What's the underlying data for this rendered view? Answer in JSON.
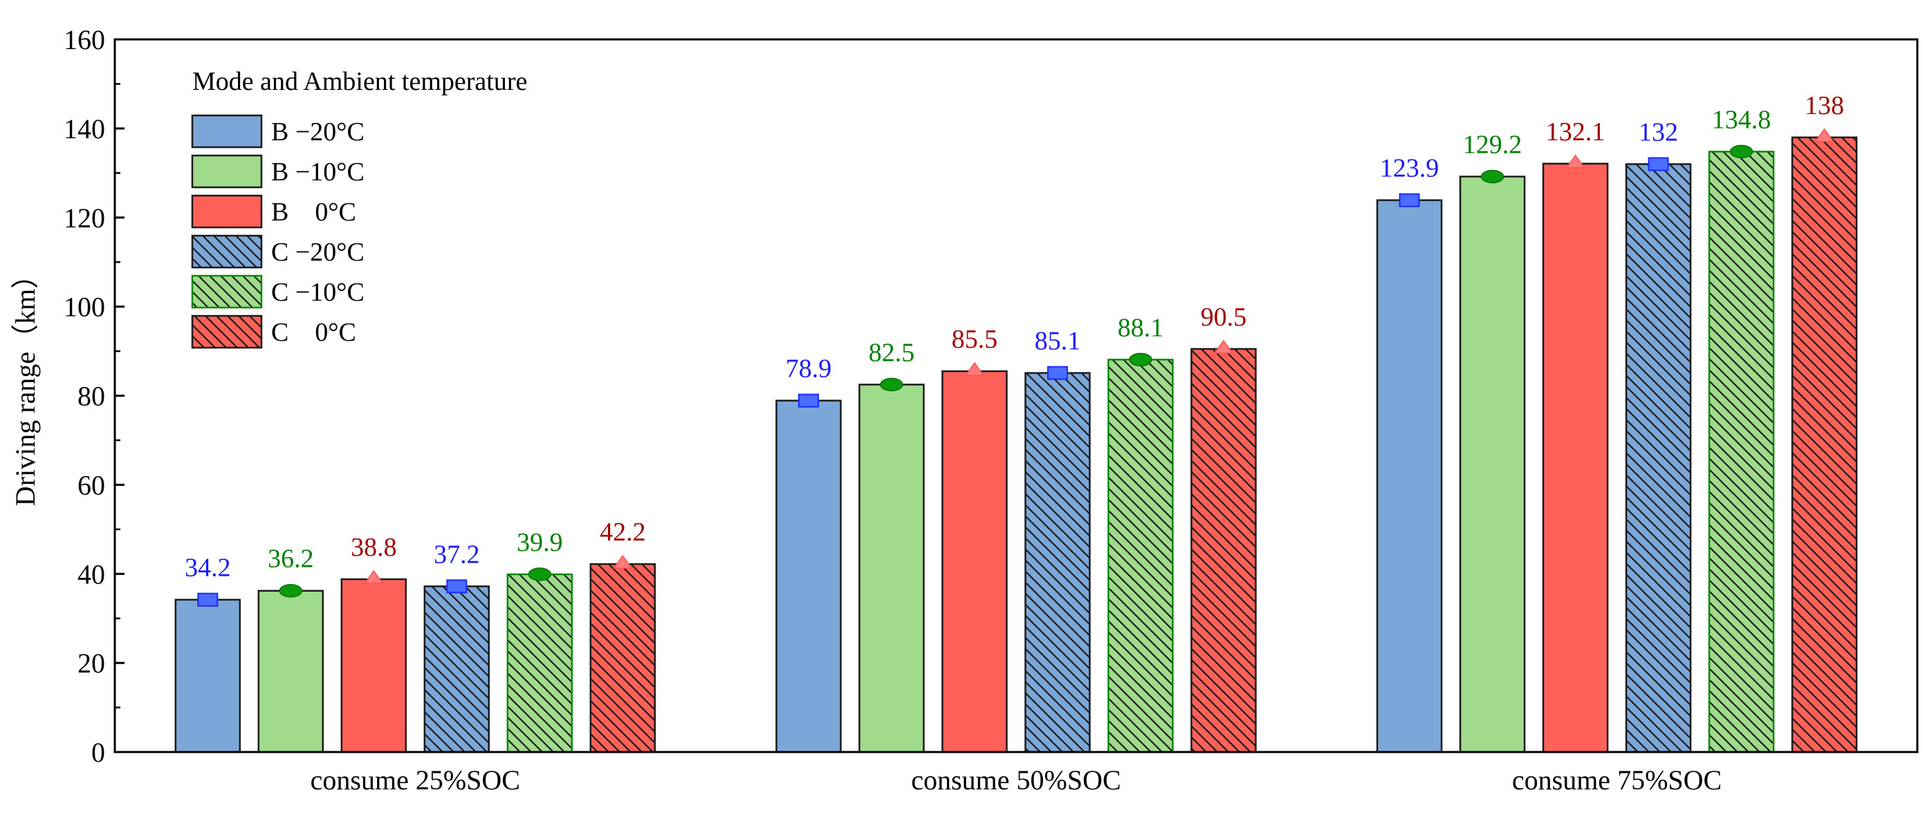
{
  "chart_data": {
    "type": "bar",
    "ylabel": "Driving range（km）",
    "xlabel": "",
    "ylim": [
      0,
      160
    ],
    "yticks": [
      0,
      20,
      40,
      60,
      80,
      100,
      120,
      140,
      160
    ],
    "grid": false,
    "legend_title": "Mode and Ambient temperature",
    "legend_position": "top-left",
    "categories": [
      "consume 25%SOC",
      "consume 50%SOC",
      "consume 75%SOC"
    ],
    "series": [
      {
        "name": "B −20°C",
        "values": [
          34.2,
          78.9,
          123.9
        ],
        "color": "#7ba6d8",
        "hatched": false,
        "marker": "square",
        "label_color": "#1a1aff"
      },
      {
        "name": "B −10°C",
        "values": [
          36.2,
          82.5,
          129.2
        ],
        "color": "#9fdb8a",
        "hatched": false,
        "marker": "circle",
        "label_color": "#008000"
      },
      {
        "name": "B    0°C",
        "values": [
          38.8,
          85.5,
          132.1
        ],
        "color": "#ff6158",
        "hatched": false,
        "marker": "triangle",
        "label_color": "#a00000"
      },
      {
        "name": "C −20°C",
        "values": [
          37.2,
          85.1,
          132
        ],
        "color": "#7ba6d8",
        "hatched": true,
        "marker": "square",
        "label_color": "#1a1aff"
      },
      {
        "name": "C −10°C",
        "values": [
          39.9,
          88.1,
          134.8
        ],
        "color": "#9fdb8a",
        "hatched": true,
        "marker": "circle",
        "label_color": "#008000"
      },
      {
        "name": "C    0°C",
        "values": [
          42.2,
          90.5,
          138
        ],
        "color": "#ff6158",
        "hatched": true,
        "marker": "triangle",
        "label_color": "#a00000"
      }
    ]
  }
}
